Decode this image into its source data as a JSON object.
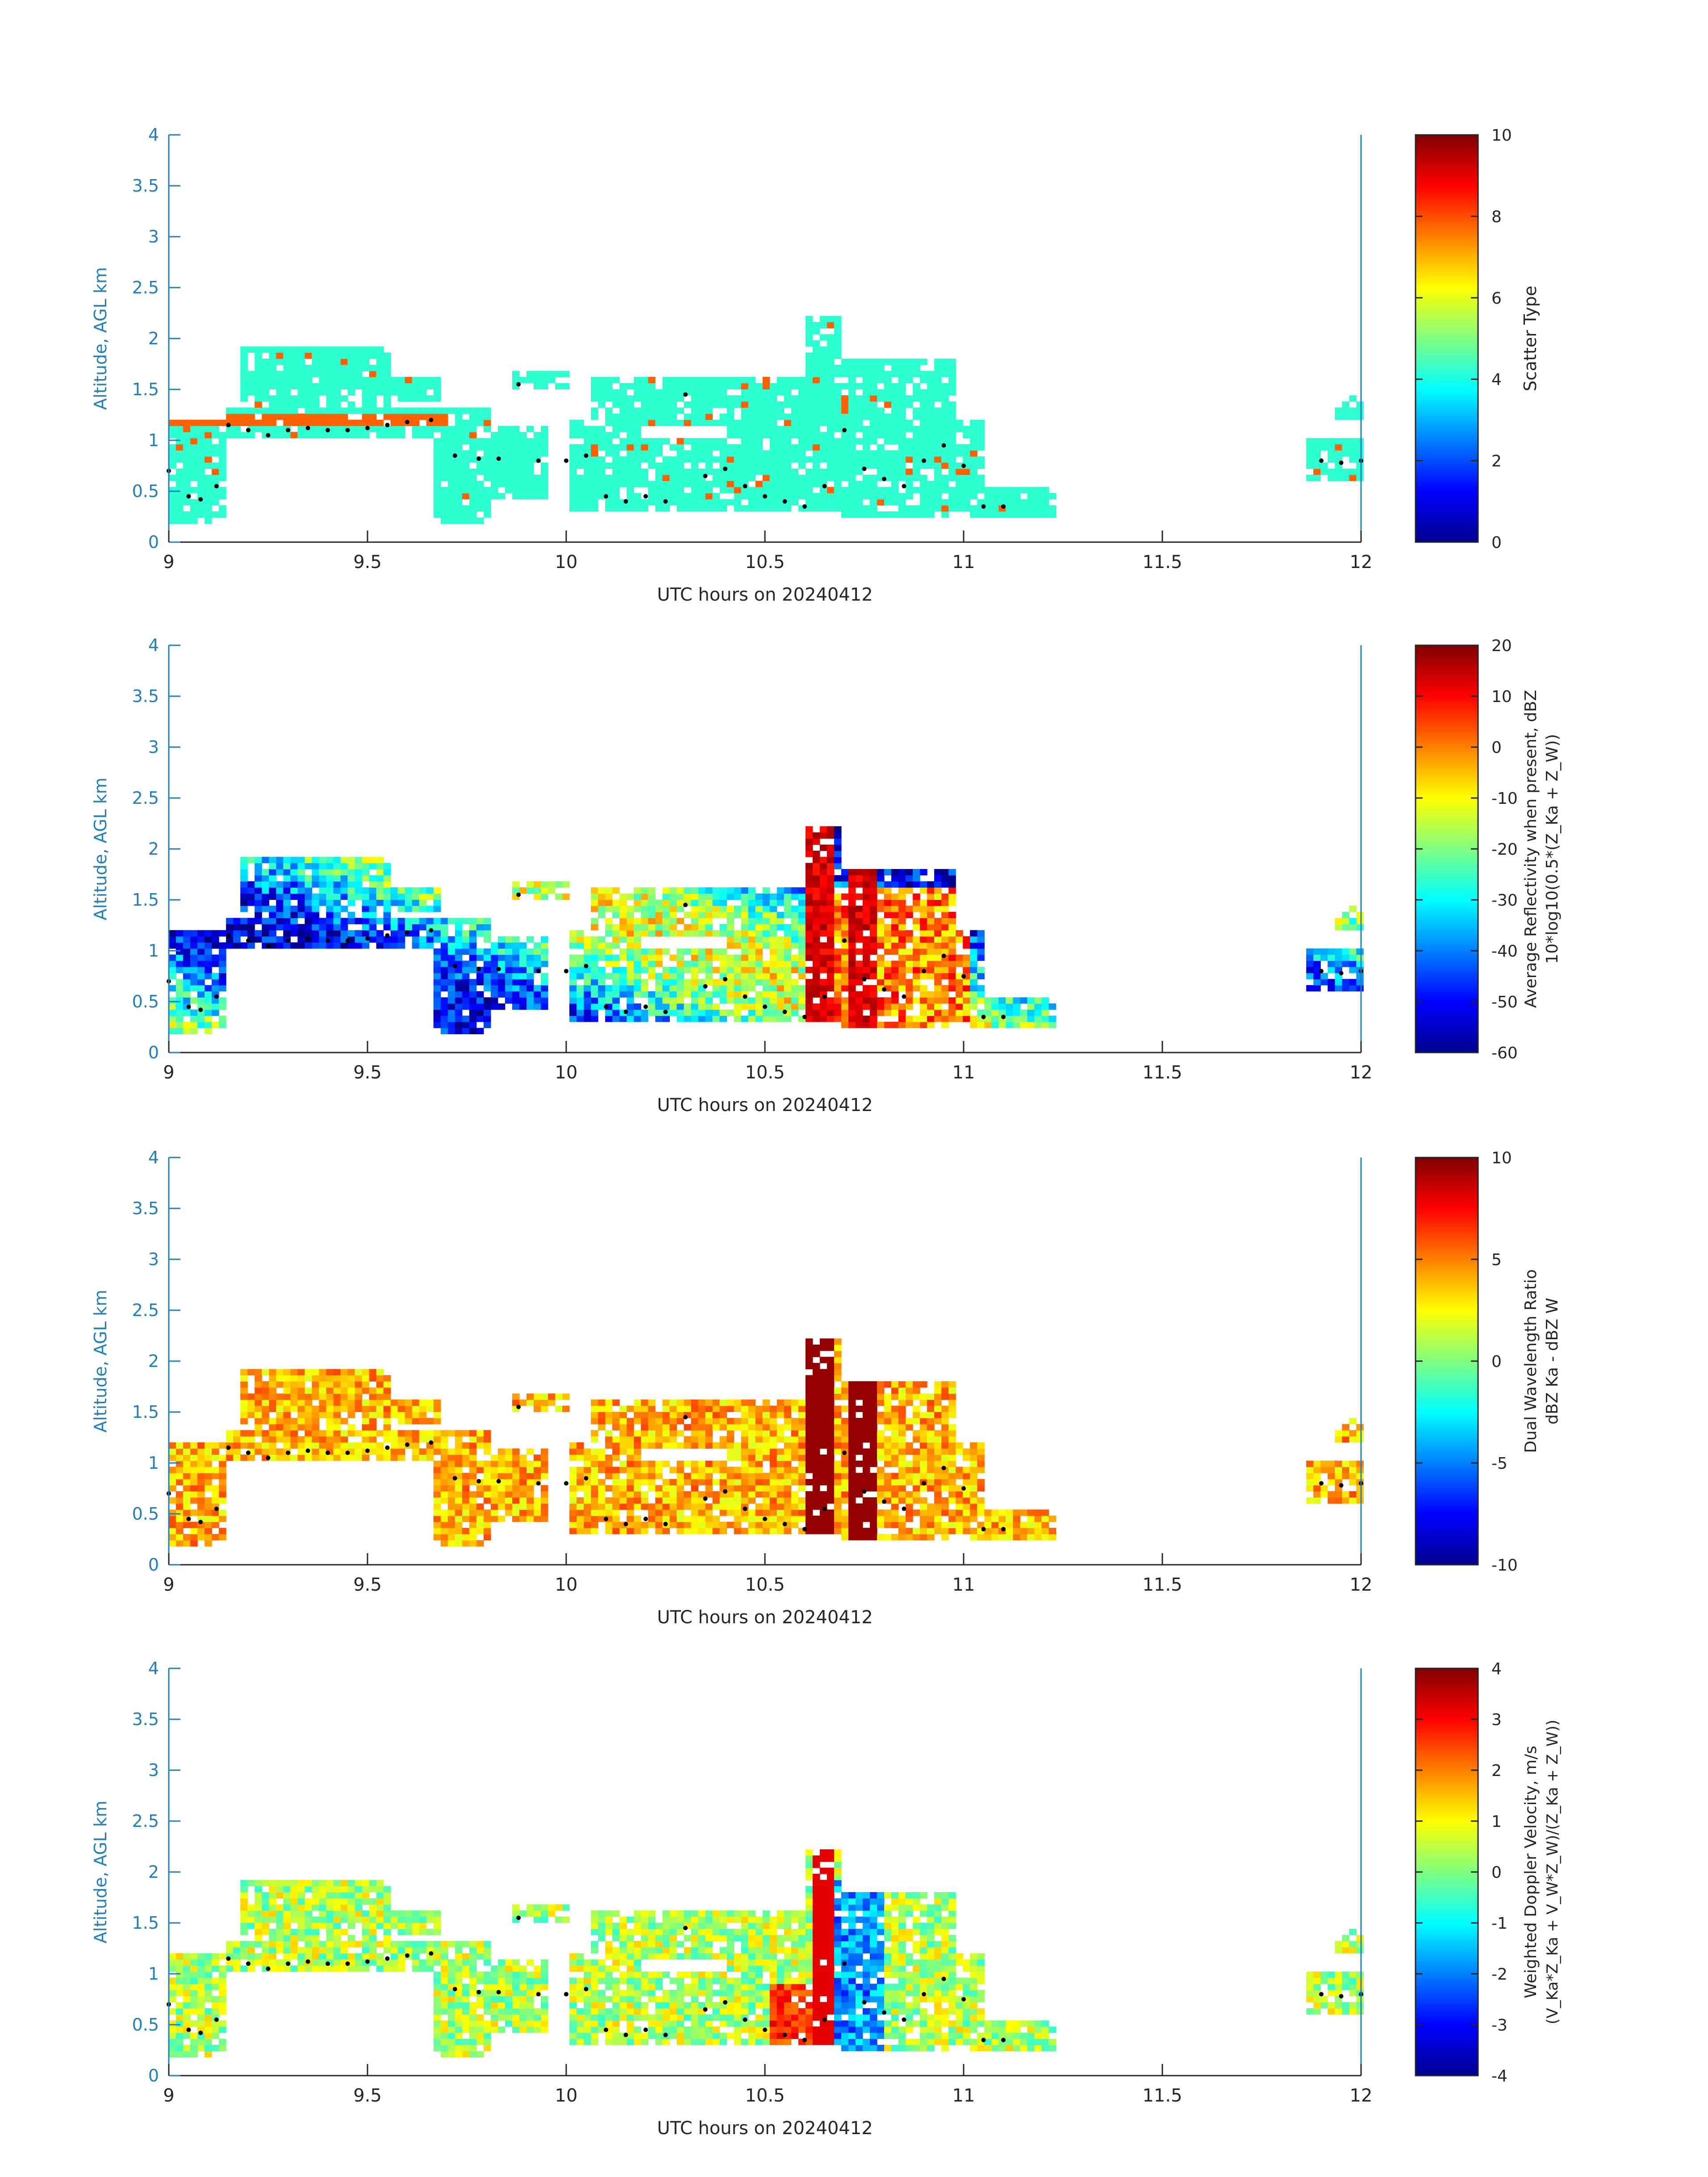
{
  "chart_data": [
    {
      "type": "heatmap",
      "xlabel": "UTC hours on 20240412",
      "ylabel": "Altitude, AGL km",
      "xlim": [
        9,
        12
      ],
      "ylim": [
        0,
        4
      ],
      "xticks": [
        "9",
        "9.5",
        "10",
        "10.5",
        "11",
        "11.5",
        "12"
      ],
      "yticks": [
        "0",
        "0.5",
        "1",
        "1.5",
        "2",
        "2.5",
        "3",
        "3.5",
        "4"
      ],
      "colorbar": {
        "label": [
          "Scatter Type"
        ],
        "range": [
          0,
          10
        ],
        "ticks": [
          "0",
          "2",
          "4",
          "6",
          "8",
          "10"
        ]
      },
      "field": "scatter"
    },
    {
      "type": "heatmap",
      "xlabel": "UTC hours on 20240412",
      "ylabel": "Altitude, AGL km",
      "xlim": [
        9,
        12
      ],
      "ylim": [
        0,
        4
      ],
      "xticks": [
        "9",
        "9.5",
        "10",
        "10.5",
        "11",
        "11.5",
        "12"
      ],
      "yticks": [
        "0",
        "0.5",
        "1",
        "1.5",
        "2",
        "2.5",
        "3",
        "3.5",
        "4"
      ],
      "colorbar": {
        "label": [
          "Average Reflectivity when present, dBZ",
          "10*log10(0.5*(Z_Ka + Z_W))"
        ],
        "range": [
          -60,
          20
        ],
        "ticks": [
          "-60",
          "-50",
          "-40",
          "-30",
          "-20",
          "-10",
          "0",
          "10",
          "20"
        ]
      },
      "field": "reflectivity"
    },
    {
      "type": "heatmap",
      "xlabel": "UTC hours on 20240412",
      "ylabel": "Altitude, AGL km",
      "xlim": [
        9,
        12
      ],
      "ylim": [
        0,
        4
      ],
      "xticks": [
        "9",
        "9.5",
        "10",
        "10.5",
        "11",
        "11.5",
        "12"
      ],
      "yticks": [
        "0",
        "0.5",
        "1",
        "1.5",
        "2",
        "2.5",
        "3",
        "3.5",
        "4"
      ],
      "colorbar": {
        "label": [
          "Dual Wavelength Ratio",
          "dBZ Ka - dBZ W"
        ],
        "range": [
          -10,
          10
        ],
        "ticks": [
          "-10",
          "-5",
          "0",
          "5",
          "10"
        ]
      },
      "field": "dwr"
    },
    {
      "type": "heatmap",
      "xlabel": "UTC hours on 20240412",
      "ylabel": "Altitude, AGL km",
      "xlim": [
        9,
        12
      ],
      "ylim": [
        0,
        4
      ],
      "xticks": [
        "9",
        "9.5",
        "10",
        "10.5",
        "11",
        "11.5",
        "12"
      ],
      "yticks": [
        "0",
        "0.5",
        "1",
        "1.5",
        "2",
        "2.5",
        "3",
        "3.5",
        "4"
      ],
      "colorbar": {
        "label": [
          "Weighted Doppler Velocity, m/s",
          "(V_Ka*Z_Ka + V_W*Z_W)/(Z_Ka + Z_W))"
        ],
        "range": [
          -4,
          4
        ],
        "ticks": [
          "-4",
          "-3",
          "-2",
          "-1",
          "0",
          "1",
          "2",
          "3",
          "4"
        ]
      },
      "field": "velocity"
    }
  ],
  "cloud_regions": [
    {
      "x0": 9.0,
      "x1": 9.13,
      "y0": 0.18,
      "y1": 1.2
    },
    {
      "x0": 9.13,
      "x1": 9.65,
      "y0": 1.0,
      "y1": 1.3
    },
    {
      "x0": 9.18,
      "x1": 9.55,
      "y0": 1.3,
      "y1": 1.9
    },
    {
      "x0": 9.55,
      "x1": 9.68,
      "y0": 1.35,
      "y1": 1.6
    },
    {
      "x0": 9.65,
      "x1": 9.8,
      "y0": 0.18,
      "y1": 1.3
    },
    {
      "x0": 9.8,
      "x1": 9.95,
      "y0": 0.4,
      "y1": 1.1
    },
    {
      "x0": 9.86,
      "x1": 10.0,
      "y0": 1.45,
      "y1": 1.65
    },
    {
      "x0": 10.0,
      "x1": 10.18,
      "y0": 0.3,
      "y1": 1.2
    },
    {
      "x0": 10.05,
      "x1": 10.4,
      "y0": 1.1,
      "y1": 1.6
    },
    {
      "x0": 10.18,
      "x1": 10.55,
      "y0": 0.25,
      "y1": 1.0
    },
    {
      "x0": 10.4,
      "x1": 10.64,
      "y0": 0.3,
      "y1": 1.6
    },
    {
      "x0": 10.6,
      "x1": 10.68,
      "y0": 0.3,
      "y1": 2.2
    },
    {
      "x0": 10.68,
      "x1": 10.98,
      "y0": 0.2,
      "y1": 1.75
    },
    {
      "x0": 10.98,
      "x1": 11.05,
      "y0": 0.25,
      "y1": 1.2
    },
    {
      "x0": 11.0,
      "x1": 11.22,
      "y0": 0.2,
      "y1": 0.5
    },
    {
      "x0": 11.85,
      "x1": 12.0,
      "y0": 0.6,
      "y1": 1.0
    },
    {
      "x0": 11.93,
      "x1": 12.0,
      "y0": 1.15,
      "y1": 1.4
    }
  ],
  "dots": [
    [
      9.0,
      0.7
    ],
    [
      9.05,
      0.45
    ],
    [
      9.08,
      0.42
    ],
    [
      9.12,
      0.55
    ],
    [
      9.15,
      1.15
    ],
    [
      9.2,
      1.1
    ],
    [
      9.25,
      1.05
    ],
    [
      9.3,
      1.1
    ],
    [
      9.35,
      1.12
    ],
    [
      9.4,
      1.1
    ],
    [
      9.45,
      1.1
    ],
    [
      9.5,
      1.12
    ],
    [
      9.55,
      1.15
    ],
    [
      9.6,
      1.18
    ],
    [
      9.66,
      1.2
    ],
    [
      9.72,
      0.85
    ],
    [
      9.78,
      0.82
    ],
    [
      9.83,
      0.82
    ],
    [
      9.88,
      1.55
    ],
    [
      9.93,
      0.8
    ],
    [
      10.0,
      0.8
    ],
    [
      10.05,
      0.85
    ],
    [
      10.1,
      0.45
    ],
    [
      10.15,
      0.4
    ],
    [
      10.2,
      0.45
    ],
    [
      10.25,
      0.4
    ],
    [
      10.3,
      1.45
    ],
    [
      10.35,
      0.65
    ],
    [
      10.4,
      0.72
    ],
    [
      10.45,
      0.55
    ],
    [
      10.5,
      0.45
    ],
    [
      10.55,
      0.4
    ],
    [
      10.6,
      0.35
    ],
    [
      10.65,
      0.55
    ],
    [
      10.7,
      1.1
    ],
    [
      10.75,
      0.72
    ],
    [
      10.8,
      0.62
    ],
    [
      10.85,
      0.55
    ],
    [
      10.9,
      0.8
    ],
    [
      10.95,
      0.95
    ],
    [
      11.0,
      0.75
    ],
    [
      11.05,
      0.35
    ],
    [
      11.1,
      0.35
    ],
    [
      11.9,
      0.8
    ],
    [
      11.95,
      0.78
    ],
    [
      12.0,
      0.8
    ]
  ]
}
